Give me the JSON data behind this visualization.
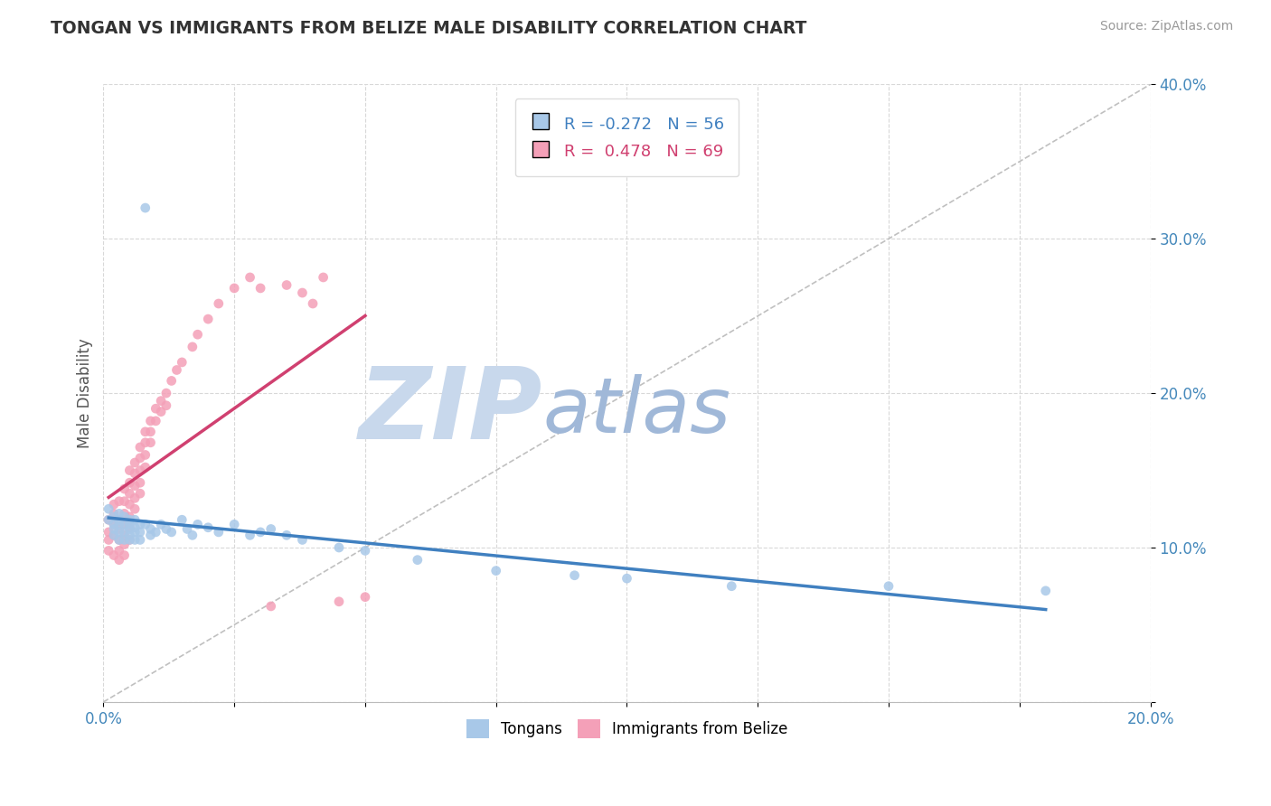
{
  "title": "TONGAN VS IMMIGRANTS FROM BELIZE MALE DISABILITY CORRELATION CHART",
  "source": "Source: ZipAtlas.com",
  "ylabel": "Male Disability",
  "xlim": [
    0.0,
    0.2
  ],
  "ylim": [
    0.0,
    0.4
  ],
  "color_tongan": "#a8c8e8",
  "color_belize": "#f4a0b8",
  "color_trend_tongan": "#4080c0",
  "color_trend_belize": "#d04070",
  "watermark_zip": "ZIP",
  "watermark_atlas": "atlas",
  "watermark_color_zip": "#c8d8ec",
  "watermark_color_atlas": "#a0b8d8",
  "R_tongan": -0.272,
  "N_tongan": 56,
  "R_belize": 0.478,
  "N_belize": 69,
  "grid_color": "#d8d8d8",
  "ref_line_color": "#c0c0c0",
  "tongan_x": [
    0.001,
    0.001,
    0.002,
    0.002,
    0.002,
    0.002,
    0.003,
    0.003,
    0.003,
    0.003,
    0.003,
    0.004,
    0.004,
    0.004,
    0.004,
    0.005,
    0.005,
    0.005,
    0.005,
    0.005,
    0.006,
    0.006,
    0.006,
    0.006,
    0.007,
    0.007,
    0.007,
    0.008,
    0.008,
    0.009,
    0.009,
    0.01,
    0.011,
    0.012,
    0.013,
    0.015,
    0.016,
    0.017,
    0.018,
    0.02,
    0.022,
    0.025,
    0.028,
    0.03,
    0.032,
    0.035,
    0.038,
    0.045,
    0.05,
    0.06,
    0.075,
    0.09,
    0.1,
    0.12,
    0.15,
    0.18
  ],
  "tongan_y": [
    0.125,
    0.118,
    0.12,
    0.115,
    0.112,
    0.108,
    0.122,
    0.118,
    0.115,
    0.11,
    0.105,
    0.12,
    0.115,
    0.11,
    0.105,
    0.118,
    0.115,
    0.112,
    0.108,
    0.105,
    0.118,
    0.113,
    0.11,
    0.105,
    0.115,
    0.11,
    0.105,
    0.32,
    0.115,
    0.112,
    0.108,
    0.11,
    0.115,
    0.112,
    0.11,
    0.118,
    0.112,
    0.108,
    0.115,
    0.113,
    0.11,
    0.115,
    0.108,
    0.11,
    0.112,
    0.108,
    0.105,
    0.1,
    0.098,
    0.092,
    0.085,
    0.082,
    0.08,
    0.075,
    0.075,
    0.072
  ],
  "belize_x": [
    0.001,
    0.001,
    0.001,
    0.001,
    0.002,
    0.002,
    0.002,
    0.002,
    0.002,
    0.003,
    0.003,
    0.003,
    0.003,
    0.003,
    0.003,
    0.004,
    0.004,
    0.004,
    0.004,
    0.004,
    0.004,
    0.004,
    0.005,
    0.005,
    0.005,
    0.005,
    0.005,
    0.005,
    0.005,
    0.006,
    0.006,
    0.006,
    0.006,
    0.006,
    0.007,
    0.007,
    0.007,
    0.007,
    0.007,
    0.008,
    0.008,
    0.008,
    0.008,
    0.009,
    0.009,
    0.009,
    0.01,
    0.01,
    0.011,
    0.011,
    0.012,
    0.012,
    0.013,
    0.014,
    0.015,
    0.017,
    0.018,
    0.02,
    0.022,
    0.025,
    0.028,
    0.03,
    0.032,
    0.035,
    0.038,
    0.04,
    0.042,
    0.045,
    0.05
  ],
  "belize_y": [
    0.11,
    0.118,
    0.105,
    0.098,
    0.115,
    0.122,
    0.108,
    0.095,
    0.128,
    0.13,
    0.118,
    0.112,
    0.105,
    0.098,
    0.092,
    0.138,
    0.13,
    0.122,
    0.115,
    0.108,
    0.102,
    0.095,
    0.15,
    0.142,
    0.135,
    0.128,
    0.12,
    0.113,
    0.105,
    0.155,
    0.148,
    0.14,
    0.132,
    0.125,
    0.165,
    0.158,
    0.15,
    0.142,
    0.135,
    0.175,
    0.168,
    0.16,
    0.152,
    0.182,
    0.175,
    0.168,
    0.19,
    0.182,
    0.195,
    0.188,
    0.2,
    0.192,
    0.208,
    0.215,
    0.22,
    0.23,
    0.238,
    0.248,
    0.258,
    0.268,
    0.275,
    0.268,
    0.062,
    0.27,
    0.265,
    0.258,
    0.275,
    0.065,
    0.068
  ]
}
